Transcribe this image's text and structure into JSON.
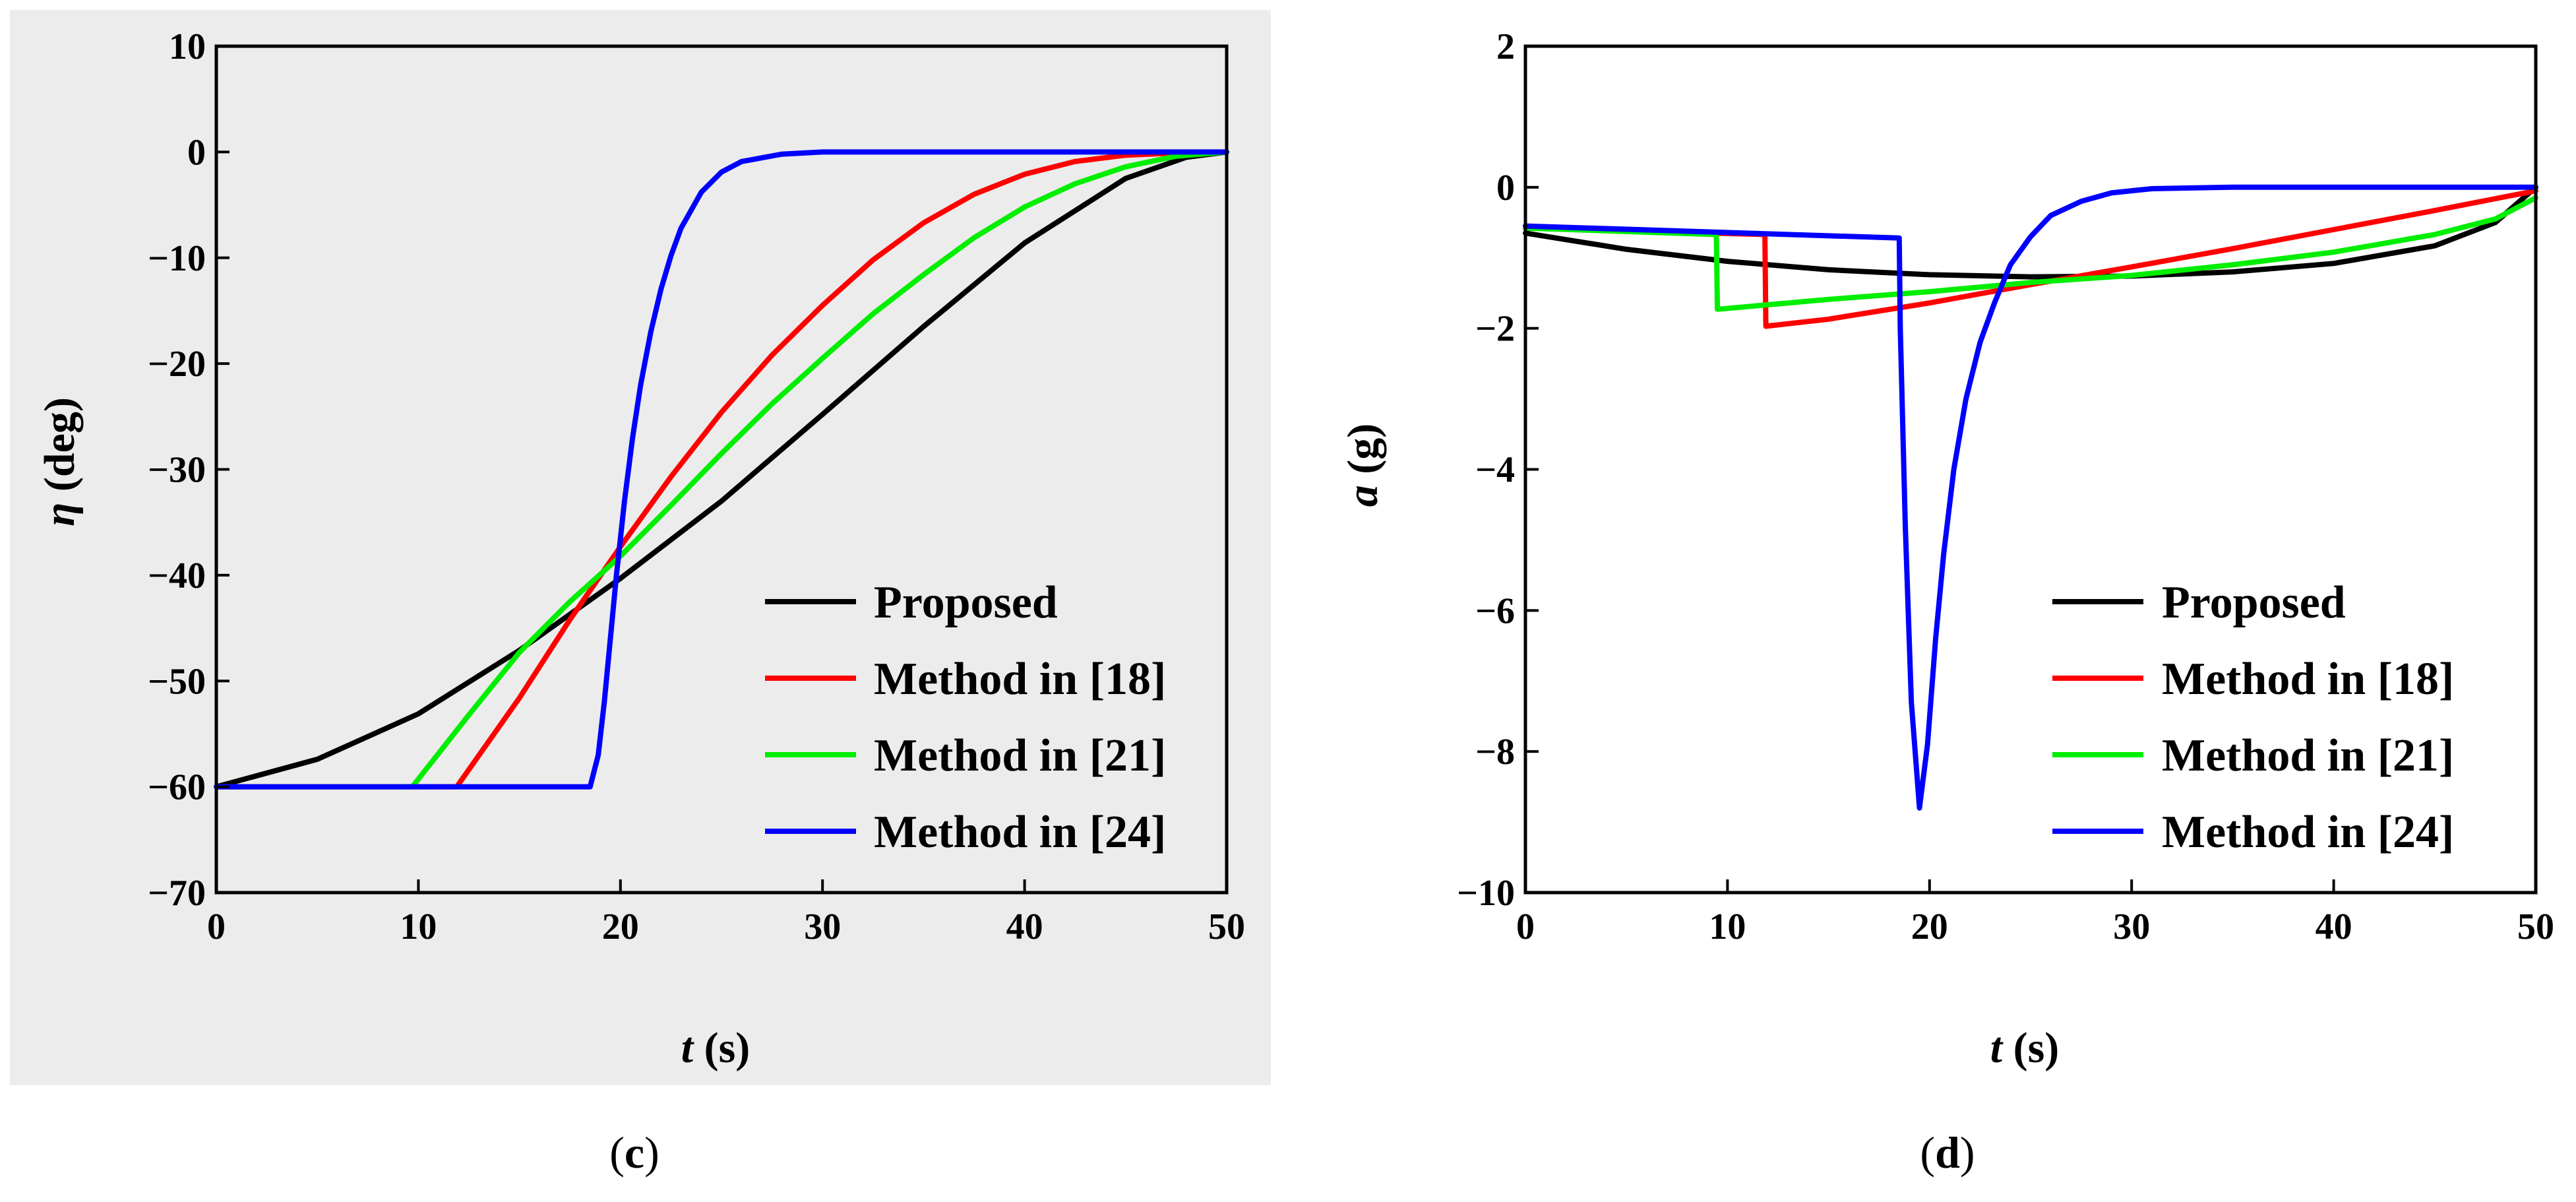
{
  "chart_data": [
    {
      "type": "line",
      "panel_label": "c",
      "title": "",
      "xlabel": {
        "symbol": "t",
        "unit": "(s)"
      },
      "ylabel": {
        "symbol": "η",
        "unit": "(deg)"
      },
      "xlim": [
        0,
        50
      ],
      "ylim": [
        -70,
        10
      ],
      "xticks": [
        0,
        10,
        20,
        30,
        40,
        50
      ],
      "yticks": [
        10,
        0,
        -10,
        -20,
        -30,
        -40,
        -50,
        -60,
        -70
      ],
      "xtick_labels": [
        "0",
        "10",
        "20",
        "30",
        "40",
        "50"
      ],
      "ytick_labels": [
        "10",
        "0",
        "−10",
        "−20",
        "−30",
        "−40",
        "−50",
        "−60",
        "−70"
      ],
      "grid": false,
      "legend_position": "bottom-right",
      "series": [
        {
          "name": "Proposed",
          "color": "#000000",
          "x": [
            0,
            5,
            10,
            15,
            20,
            25,
            30,
            35,
            40,
            45,
            48,
            50
          ],
          "y": [
            -60,
            -57.4,
            -53.1,
            -47.1,
            -40.3,
            -33.0,
            -24.8,
            -16.5,
            -8.6,
            -2.5,
            -0.5,
            0
          ]
        },
        {
          "name": "Method in [18]",
          "color": "#ff0000",
          "x": [
            0,
            11.9,
            15,
            17.5,
            20,
            22.5,
            25,
            27.5,
            30,
            32.5,
            35,
            37.5,
            40,
            42.5,
            45,
            47.5,
            50
          ],
          "y": [
            -60,
            -60,
            -51.6,
            -44.2,
            -37.3,
            -30.7,
            -24.6,
            -19.2,
            -14.5,
            -10.2,
            -6.7,
            -4.0,
            -2.1,
            -0.9,
            -0.3,
            -0.1,
            0
          ]
        },
        {
          "name": "Method in [21]",
          "color": "#00ee00",
          "x": [
            0,
            9.7,
            12.5,
            15,
            17.5,
            20,
            22.5,
            25,
            27.5,
            30,
            32.5,
            35,
            37.5,
            40,
            42.5,
            45,
            47.5,
            50
          ],
          "y": [
            -60,
            -60,
            -53.2,
            -47.3,
            -42.5,
            -38.2,
            -33.4,
            -28.5,
            -23.8,
            -19.5,
            -15.3,
            -11.6,
            -8.1,
            -5.2,
            -3.0,
            -1.4,
            -0.4,
            0
          ]
        },
        {
          "name": "Method in [24]",
          "color": "#0000ff",
          "x": [
            0,
            18.5,
            18.9,
            19.2,
            19.5,
            19.8,
            20.2,
            20.6,
            21,
            21.5,
            22,
            22.5,
            23,
            24,
            25,
            26,
            28,
            30,
            35,
            40,
            50
          ],
          "y": [
            -60,
            -60,
            -57,
            -52,
            -46,
            -40,
            -33,
            -27,
            -22,
            -17,
            -13,
            -9.8,
            -7.2,
            -3.8,
            -1.9,
            -0.9,
            -0.2,
            0,
            0,
            0,
            0
          ]
        }
      ]
    },
    {
      "type": "line",
      "panel_label": "d",
      "title": "",
      "xlabel": {
        "symbol": "t",
        "unit": "(s)"
      },
      "ylabel": {
        "symbol": "a",
        "unit": "(g)"
      },
      "xlim": [
        0,
        50
      ],
      "ylim": [
        -10,
        2
      ],
      "xticks": [
        0,
        10,
        20,
        30,
        40,
        50
      ],
      "yticks": [
        2,
        0,
        -2,
        -4,
        -6,
        -8,
        -10
      ],
      "xtick_labels": [
        "0",
        "10",
        "20",
        "30",
        "40",
        "50"
      ],
      "ytick_labels": [
        "2",
        "0",
        "−2",
        "−4",
        "−6",
        "−8",
        "−10"
      ],
      "grid": false,
      "legend_position": "bottom-right",
      "series": [
        {
          "name": "Proposed",
          "color": "#000000",
          "x": [
            0,
            5,
            10,
            15,
            20,
            25,
            30,
            35,
            40,
            45,
            48,
            50
          ],
          "y": [
            -0.65,
            -0.88,
            -1.05,
            -1.17,
            -1.24,
            -1.27,
            -1.26,
            -1.2,
            -1.08,
            -0.83,
            -0.5,
            0
          ]
        },
        {
          "name": "Method in [18]",
          "color": "#ff0000",
          "x": [
            0,
            11.85,
            11.9,
            15,
            20,
            25,
            30,
            35,
            40,
            45,
            50
          ],
          "y": [
            -0.58,
            -0.67,
            -1.97,
            -1.87,
            -1.64,
            -1.38,
            -1.13,
            -0.87,
            -0.6,
            -0.33,
            -0.05
          ]
        },
        {
          "name": "Method in [21]",
          "color": "#00ee00",
          "x": [
            0,
            9.45,
            9.5,
            15,
            20,
            25,
            30,
            35,
            40,
            45,
            48,
            50
          ],
          "y": [
            -0.58,
            -0.67,
            -1.73,
            -1.59,
            -1.48,
            -1.35,
            -1.25,
            -1.1,
            -0.92,
            -0.67,
            -0.45,
            -0.15
          ]
        },
        {
          "name": "Method in [24]",
          "color": "#0000ff",
          "x": [
            0,
            18.5,
            18.55,
            18.8,
            19.1,
            19.5,
            19.9,
            20.3,
            20.7,
            21.2,
            21.8,
            22.5,
            23.2,
            24,
            25,
            26,
            27.5,
            29,
            31,
            35,
            40,
            50
          ],
          "y": [
            -0.55,
            -0.72,
            -2.0,
            -4.8,
            -7.3,
            -8.8,
            -7.9,
            -6.4,
            -5.2,
            -4.0,
            -3.0,
            -2.2,
            -1.65,
            -1.1,
            -0.7,
            -0.4,
            -0.2,
            -0.08,
            -0.02,
            0,
            0,
            0
          ]
        }
      ]
    }
  ]
}
